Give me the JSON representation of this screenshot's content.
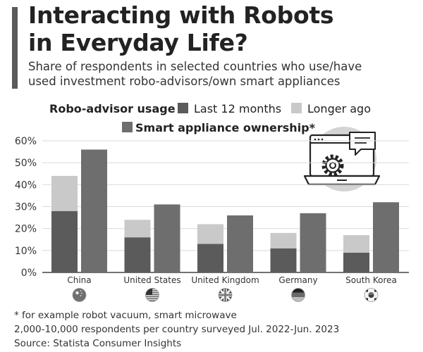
{
  "title_line1": "Interacting with Robots",
  "title_line2": "in Everyday Life?",
  "subtitle_line1": "Share of respondents in selected countries who use/have",
  "subtitle_line2": "used investment robo-advisors/own smart appliances",
  "legend": {
    "group_label": "Robo-advisor usage",
    "last12": "Last 12 months",
    "longer": "Longer ago",
    "smart": "Smart appliance ownership*"
  },
  "footnotes": [
    "* for example robot vacuum, smart microwave",
    "2,000-10,000 respondents per country surveyed Jul. 2022-Jun. 2023",
    "Source: Statista Consumer Insights"
  ],
  "colors": {
    "last12": "#5b5b5b",
    "longer": "#c9c9c9",
    "smart": "#6e6e6e",
    "grid": "#d9d9d9",
    "accent": "#5a5a5a"
  },
  "icons": [
    "china-flag-icon",
    "us-flag-icon",
    "uk-flag-icon",
    "germany-flag-icon",
    "south-korea-flag-icon",
    "laptop-gear-illustration"
  ],
  "chart_data": {
    "type": "bar",
    "categories": [
      "China",
      "United States",
      "United Kingdom",
      "Germany",
      "South Korea"
    ],
    "series": [
      {
        "name": "Last 12 months",
        "values": [
          28,
          16,
          13,
          11,
          9
        ],
        "stack": "robo-advisor"
      },
      {
        "name": "Longer ago",
        "values": [
          16,
          8,
          9,
          7,
          8
        ],
        "stack": "robo-advisor"
      },
      {
        "name": "Smart appliance ownership*",
        "values": [
          56,
          31,
          26,
          27,
          32
        ]
      }
    ],
    "yticks": [
      "0%",
      "10%",
      "20%",
      "30%",
      "40%",
      "50%",
      "60%"
    ],
    "ylim": [
      0,
      60
    ],
    "grid": true,
    "legend": "top"
  }
}
